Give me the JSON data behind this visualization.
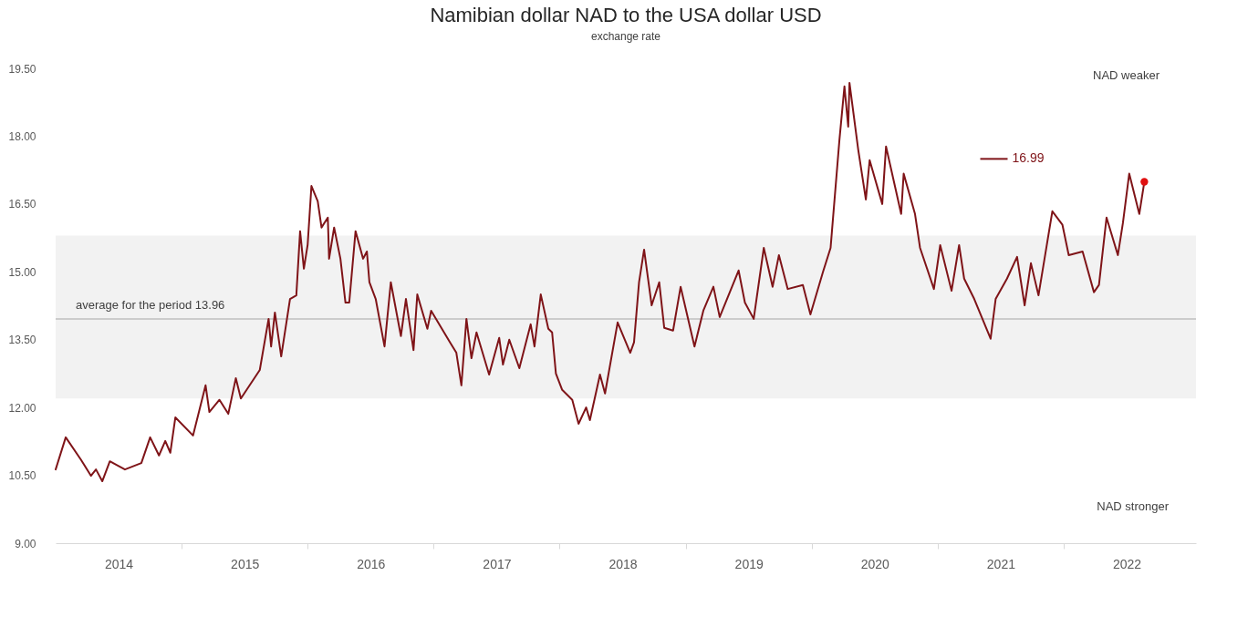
{
  "chart_data": {
    "type": "line",
    "title": "Namibian dollar NAD to the USA dollar USD",
    "subtitle": "exchange rate",
    "xlim": [
      2014,
      2023.05
    ],
    "xticks": [
      {
        "value": 2014.5,
        "label": "2014"
      },
      {
        "value": 2015,
        "label": null
      },
      {
        "value": 2015.5,
        "label": "2015"
      },
      {
        "value": 2016,
        "label": null
      },
      {
        "value": 2016.5,
        "label": "2016"
      },
      {
        "value": 2017,
        "label": null
      },
      {
        "value": 2017.5,
        "label": "2017"
      },
      {
        "value": 2018,
        "label": null
      },
      {
        "value": 2018.5,
        "label": "2018"
      },
      {
        "value": 2019,
        "label": null
      },
      {
        "value": 2019.5,
        "label": "2019"
      },
      {
        "value": 2020,
        "label": null
      },
      {
        "value": 2020.5,
        "label": "2020"
      },
      {
        "value": 2021,
        "label": null
      },
      {
        "value": 2021.5,
        "label": "2021"
      },
      {
        "value": 2022,
        "label": null
      },
      {
        "value": 2022.5,
        "label": "2022"
      }
    ],
    "ylim": [
      9,
      19.5
    ],
    "yticks": [
      {
        "value": 9,
        "label": "9.00"
      },
      {
        "value": 10.5,
        "label": "10.50"
      },
      {
        "value": 12,
        "label": "12.00"
      },
      {
        "value": 13.5,
        "label": "13.50"
      },
      {
        "value": 15,
        "label": "15.00"
      },
      {
        "value": 16.5,
        "label": "16.50"
      },
      {
        "value": 18,
        "label": "18.00"
      },
      {
        "value": 19.5,
        "label": "19.50"
      }
    ],
    "grid": false,
    "legend": "top right",
    "line_style": "solid",
    "marker": "none",
    "series": [
      {
        "name": "16.99",
        "color": "#7f1418",
        "x": [
          2014.0,
          2014.08,
          2014.2,
          2014.28,
          2014.32,
          2014.37,
          2014.43,
          2014.55,
          2014.68,
          2014.75,
          2014.82,
          2014.87,
          2014.91,
          2014.95,
          2015.09,
          2015.19,
          2015.22,
          2015.3,
          2015.37,
          2015.43,
          2015.47,
          2015.62,
          2015.69,
          2015.71,
          2015.74,
          2015.79,
          2015.86,
          2015.91,
          2015.94,
          2015.97,
          2016.0,
          2016.03,
          2016.08,
          2016.11,
          2016.16,
          2016.17,
          2016.21,
          2016.26,
          2016.3,
          2016.33,
          2016.38,
          2016.44,
          2016.47,
          2016.49,
          2016.54,
          2016.61,
          2016.66,
          2016.74,
          2016.78,
          2016.84,
          2016.87,
          2016.95,
          2016.98,
          2017.13,
          2017.18,
          2017.22,
          2017.26,
          2017.3,
          2017.34,
          2017.44,
          2017.52,
          2017.55,
          2017.6,
          2017.68,
          2017.77,
          2017.8,
          2017.85,
          2017.91,
          2017.94,
          2017.97,
          2018.02,
          2018.1,
          2018.15,
          2018.21,
          2018.24,
          2018.32,
          2018.36,
          2018.46,
          2018.56,
          2018.59,
          2018.63,
          2018.67,
          2018.73,
          2018.79,
          2018.83,
          2018.9,
          2018.96,
          2019.07,
          2019.14,
          2019.22,
          2019.27,
          2019.42,
          2019.47,
          2019.54,
          2019.62,
          2019.69,
          2019.74,
          2019.81,
          2019.93,
          2019.99,
          2020.09,
          2020.15,
          2020.22,
          2020.26,
          2020.29,
          2020.3,
          2020.37,
          2020.43,
          2020.46,
          2020.56,
          2020.59,
          2020.67,
          2020.71,
          2020.73,
          2020.82,
          2020.86,
          2020.97,
          2021.02,
          2021.11,
          2021.17,
          2021.21,
          2021.29,
          2021.42,
          2021.46,
          2021.55,
          2021.63,
          2021.69,
          2021.74,
          2021.8,
          2021.91,
          2021.99,
          2022.04,
          2022.15,
          2022.24,
          2022.28,
          2022.34,
          2022.43,
          2022.47,
          2022.52,
          2022.6,
          2022.64
        ],
        "values": [
          10.63,
          11.34,
          10.85,
          10.49,
          10.63,
          10.37,
          10.81,
          10.63,
          10.77,
          11.34,
          10.94,
          11.26,
          11.0,
          11.78,
          11.38,
          12.49,
          11.9,
          12.17,
          11.86,
          12.65,
          12.2,
          12.83,
          13.96,
          13.35,
          14.1,
          13.13,
          14.4,
          14.48,
          15.9,
          15.07,
          15.6,
          16.9,
          16.56,
          15.98,
          16.2,
          15.29,
          15.98,
          15.29,
          14.32,
          14.32,
          15.9,
          15.29,
          15.45,
          14.77,
          14.4,
          13.35,
          14.77,
          13.58,
          14.4,
          13.27,
          14.5,
          13.74,
          14.14,
          13.44,
          13.21,
          12.49,
          13.96,
          13.09,
          13.66,
          12.73,
          13.54,
          12.95,
          13.5,
          12.87,
          13.84,
          13.35,
          14.5,
          13.74,
          13.66,
          12.75,
          12.39,
          12.17,
          11.64,
          12.0,
          11.72,
          12.73,
          12.31,
          13.88,
          13.21,
          13.44,
          14.77,
          15.49,
          14.26,
          14.77,
          13.76,
          13.7,
          14.67,
          13.35,
          14.14,
          14.67,
          14.0,
          15.03,
          14.32,
          13.96,
          15.53,
          14.67,
          15.37,
          14.62,
          14.71,
          14.06,
          15.0,
          15.53,
          17.91,
          19.1,
          18.21,
          19.18,
          17.69,
          16.6,
          17.47,
          16.5,
          17.77,
          16.78,
          16.28,
          17.17,
          16.28,
          15.53,
          14.62,
          15.59,
          14.58,
          15.59,
          14.85,
          14.4,
          13.52,
          14.4,
          14.85,
          15.33,
          14.26,
          15.19,
          14.48,
          16.34,
          16.04,
          15.37,
          15.45,
          14.55,
          14.71,
          16.2,
          15.37,
          16.08,
          17.17,
          16.28,
          16.99
        ]
      },
      {
        "type": "scatter",
        "marker": "circle",
        "color": "#e01010",
        "x": [
          2022.64
        ],
        "values": [
          16.99
        ]
      }
    ],
    "ref_lines": [
      {
        "axis": "y",
        "value": 13.96,
        "label": "average for the period 13.96",
        "color": "#bfbfbf"
      }
    ],
    "bands": [
      {
        "axis": "y",
        "from": 12.2,
        "to": 15.8,
        "color": "#f2f2f2"
      }
    ],
    "annotations": [
      "NAD weaker",
      "NAD stronger"
    ]
  }
}
